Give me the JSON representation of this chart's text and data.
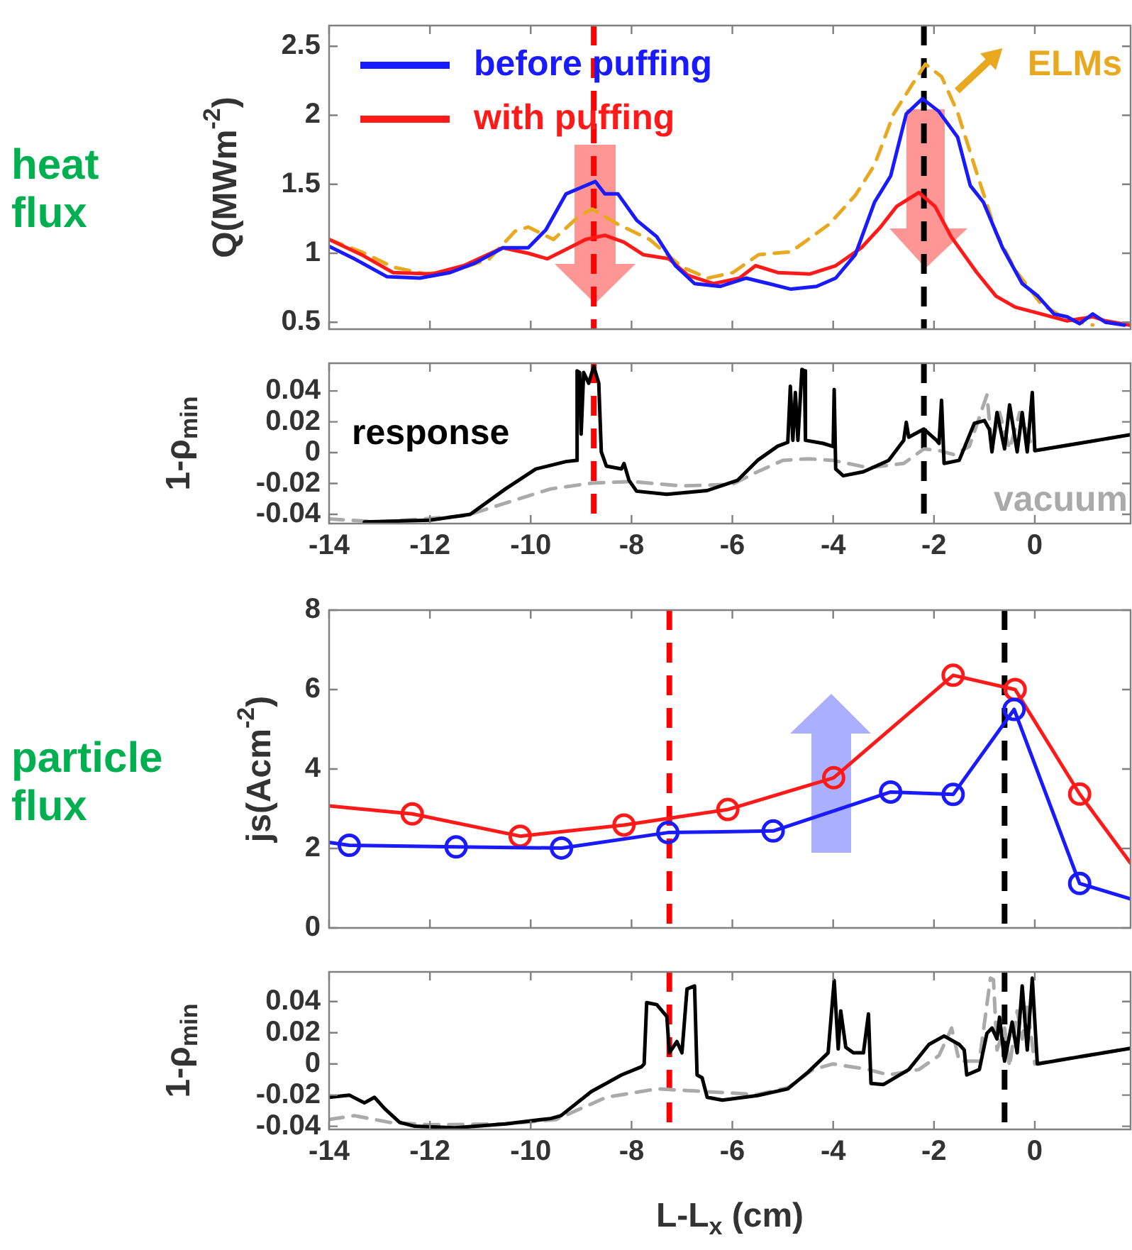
{
  "chart_data": [
    {
      "type": "line",
      "ylabel": "Q(MWm$^{-2}$)",
      "annotations": [
        "heat flux",
        "ELMs"
      ],
      "xlim": [
        -14,
        1.9
      ],
      "xticks": [
        -14,
        -12,
        -10,
        -8,
        -6,
        -4,
        -2,
        0
      ],
      "ylim": [
        0.45,
        2.65
      ],
      "yticks": [
        0.5,
        1,
        1.5,
        2,
        2.5
      ],
      "tick_labels": "y",
      "legend": "top left",
      "line_style": "solid",
      "marker": "none",
      "ref_lines": [
        {
          "axis": "x",
          "value": -8.75,
          "color": "#ff0000",
          "line_style": "dashed"
        },
        {
          "axis": "x",
          "value": -2.2,
          "color": "#000000",
          "line_style": "dashed"
        }
      ],
      "series": [
        {
          "name": "before puffing",
          "color": "#1a1aff",
          "x": [
            -14,
            -13.5,
            -12.85,
            -12.2,
            -11.6,
            -11.1,
            -10.55,
            -10.05,
            -9.7,
            -9.3,
            -9.04,
            -8.72,
            -8.53,
            -8.27,
            -7.9,
            -7.5,
            -7.13,
            -6.75,
            -6.24,
            -5.73,
            -5.28,
            -4.84,
            -4.33,
            -3.95,
            -3.56,
            -3.18,
            -2.86,
            -2.55,
            -2.23,
            -1.91,
            -1.53,
            -1.28,
            -1.02,
            -0.64,
            -0.25,
            0.06,
            0.38,
            0.64,
            0.89,
            1.15,
            1.4,
            1.78
          ],
          "values": [
            1.05,
            0.96,
            0.83,
            0.82,
            0.86,
            0.93,
            1.04,
            1.04,
            1.17,
            1.43,
            1.47,
            1.52,
            1.43,
            1.43,
            1.24,
            1.12,
            0.91,
            0.78,
            0.76,
            0.82,
            0.78,
            0.74,
            0.76,
            0.82,
            0.99,
            1.37,
            1.56,
            2.01,
            2.12,
            2.03,
            1.84,
            1.49,
            1.37,
            1.04,
            0.78,
            0.69,
            0.56,
            0.54,
            0.49,
            0.56,
            0.5,
            0.48
          ]
        },
        {
          "name": "with puffing",
          "color": "#ff1a1a",
          "x": [
            -14,
            -13.36,
            -12.73,
            -11.96,
            -11.33,
            -10.56,
            -10.05,
            -9.67,
            -9.29,
            -8.91,
            -8.53,
            -8.15,
            -7.77,
            -7.26,
            -6.88,
            -6.37,
            -5.86,
            -5.54,
            -5.1,
            -4.46,
            -3.95,
            -3.44,
            -3.06,
            -2.74,
            -2.3,
            -1.98,
            -1.66,
            -1.15,
            -0.77,
            -0.39,
            0.13,
            0.64,
            1.15,
            1.4,
            1.88
          ],
          "values": [
            1.1,
            0.99,
            0.86,
            0.85,
            0.91,
            1.04,
            1.0,
            0.96,
            1.03,
            1.1,
            1.13,
            1.08,
            0.99,
            0.96,
            0.84,
            0.78,
            0.82,
            0.91,
            0.86,
            0.85,
            0.91,
            1.04,
            1.19,
            1.34,
            1.44,
            1.34,
            1.12,
            0.86,
            0.69,
            0.61,
            0.56,
            0.51,
            0.54,
            0.51,
            0.48
          ]
        },
        {
          "color": "#e8a820",
          "line_style": "dashed",
          "x": [
            -14,
            -13.36,
            -12.73,
            -12.09,
            -11.46,
            -10.82,
            -10.31,
            -10.05,
            -9.55,
            -9.04,
            -8.78,
            -8.27,
            -7.64,
            -7.0,
            -6.49,
            -5.99,
            -5.48,
            -4.84,
            -4.08,
            -3.56,
            -3.18,
            -2.8,
            -2.42,
            -2.17,
            -1.85,
            -1.53,
            -1.15,
            -0.77,
            -0.39,
            0.13,
            0.64,
            1.15
          ],
          "values": [
            1.1,
            1.01,
            0.9,
            0.85,
            0.88,
            0.96,
            1.16,
            1.19,
            1.1,
            1.27,
            1.32,
            1.21,
            1.1,
            0.9,
            0.82,
            0.86,
            0.99,
            1.01,
            1.21,
            1.42,
            1.64,
            2.01,
            2.23,
            2.37,
            2.28,
            2.02,
            1.58,
            1.15,
            0.88,
            0.63,
            0.52,
            0.48
          ]
        }
      ]
    },
    {
      "type": "line",
      "ylabel": "1-ρ$_{min}$",
      "xlim": [
        -14,
        1.9
      ],
      "xticks": [
        -14,
        -12,
        -10,
        -8,
        -6,
        -4,
        -2,
        0
      ],
      "ylim": [
        -0.046,
        0.058
      ],
      "yticks": [
        -0.04,
        -0.02,
        0,
        0.02,
        0.04
      ],
      "line_style": "solid",
      "marker": "none",
      "ref_lines": [
        {
          "axis": "x",
          "value": -8.75,
          "color": "#ff0000",
          "line_style": "dashed"
        },
        {
          "axis": "x",
          "value": -2.2,
          "color": "#000000",
          "line_style": "dashed"
        }
      ],
      "series": [
        {
          "name": "response",
          "color": "#000000",
          "x": [
            -13.3,
            -12,
            -11.2,
            -10.5,
            -9.9,
            -9.3,
            -9.1,
            -9.08,
            -9.03,
            -9.0,
            -8.95,
            -8.85,
            -8.75,
            -8.65,
            -8.6,
            -8.5,
            -8.2,
            -8.15,
            -8.05,
            -7.9,
            -7.3,
            -6.5,
            -5.9,
            -5.5,
            -5.1,
            -4.9,
            -4.85,
            -4.8,
            -4.75,
            -4.7,
            -4.62,
            -4.57,
            -4.55,
            -4.2,
            -4.0,
            -3.98,
            -3.95,
            -3.8,
            -3.4,
            -2.9,
            -2.6,
            -2.55,
            -2.5,
            -2.2,
            -1.95,
            -1.9,
            -1.85,
            -1.8,
            -1.5,
            -1.2,
            -1.0,
            -0.9,
            -0.85,
            -0.75,
            -0.6,
            -0.5,
            -0.35,
            -0.25,
            -0.15,
            -0.05,
            0,
            1.9
          ],
          "values": [
            -0.045,
            -0.0438,
            -0.04,
            -0.0235,
            -0.0106,
            -0.0058,
            -0.005,
            0.053,
            0.052,
            0.012,
            0.052,
            0.045,
            0.056,
            0.045,
            0.0005,
            -0.0087,
            -0.0106,
            -0.007,
            -0.018,
            -0.025,
            -0.027,
            -0.0246,
            -0.018,
            -0.005,
            0.0042,
            0.0067,
            0.043,
            0.008,
            0.039,
            0.008,
            0.054,
            0.053,
            0.008,
            0.006,
            0.004,
            0.041,
            -0.0106,
            -0.015,
            -0.0124,
            -0.005,
            0.008,
            0.0197,
            0.01,
            0.0153,
            0.008,
            0.006,
            0.034,
            -0.007,
            -0.005,
            0.019,
            0.0208,
            0.015,
            0.0005,
            0.026,
            0.0024,
            0.031,
            0.0005,
            0.026,
            0.0005,
            0.039,
            0.0013,
            0.0116
          ]
        },
        {
          "name": "vacuum",
          "color": "#aaaaaa",
          "line_style": "dashed",
          "x": [
            -14,
            -13,
            -11.3,
            -10.5,
            -9.6,
            -8.8,
            -8,
            -7,
            -6,
            -5.5,
            -5,
            -4.5,
            -4,
            -3.3,
            -2.6,
            -2.2,
            -1.9,
            -1.6,
            -1.3,
            -1.1,
            -0.95,
            -0.85,
            -0.7,
            -0.5,
            -0.3,
            -0.1,
            0,
            1.9
          ],
          "values": [
            -0.043,
            -0.045,
            -0.041,
            -0.0327,
            -0.0235,
            -0.0198,
            -0.0187,
            -0.0216,
            -0.0205,
            -0.0124,
            -0.005,
            -0.004,
            -0.005,
            -0.0098,
            -0.007,
            0.0024,
            0.0013,
            -0.0013,
            0.004,
            0.023,
            0.0374,
            0.004,
            0.026,
            0.0024,
            0.026,
            0.008,
            0.0013,
            0.0116
          ]
        }
      ]
    },
    {
      "type": "line",
      "ylabel": "js(Acm$^{-2}$)",
      "annotations": [
        "particle flux"
      ],
      "xlim": [
        -14,
        1.9
      ],
      "xticks": [
        -14,
        -12,
        -10,
        -8,
        -6,
        -4,
        -2,
        0
      ],
      "ylim": [
        0,
        8
      ],
      "yticks": [
        0,
        2,
        4,
        6,
        8
      ],
      "tick_labels": "y",
      "line_style": "solid",
      "marker": "circle",
      "ref_lines": [
        {
          "axis": "x",
          "value": -7.25,
          "color": "#ff0000",
          "line_style": "dashed"
        },
        {
          "axis": "x",
          "value": -0.6,
          "color": "#000000",
          "line_style": "dashed"
        }
      ],
      "series": [
        {
          "color": "#1a1aff",
          "x": [
            -14,
            -13.6,
            -11.48,
            -9.39,
            -7.28,
            -5.19,
            -2.86,
            -1.62,
            -0.41,
            0.89,
            1.9
          ],
          "values": [
            2.15,
            2.08,
            2.04,
            2.01,
            2.4,
            2.44,
            3.42,
            3.36,
            5.5,
            1.12,
            0.73
          ]
        },
        {
          "color": "#ff1a1a",
          "x": [
            -14,
            -12.35,
            -10.21,
            -8.15,
            -6.09,
            -3.99,
            -1.62,
            -0.39,
            0.89,
            1.9
          ],
          "values": [
            3.07,
            2.87,
            2.31,
            2.59,
            2.98,
            3.78,
            6.36,
            6.0,
            3.37,
            1.63
          ]
        }
      ]
    },
    {
      "type": "line",
      "xlabel": "L-L$_{x}$ (cm)",
      "ylabel": "1-ρ$_{min}$",
      "xlim": [
        -14,
        1.9
      ],
      "xticks": [
        -14,
        -12,
        -10,
        -8,
        -6,
        -4,
        -2,
        0
      ],
      "ylim": [
        -0.042,
        0.059
      ],
      "yticks": [
        -0.04,
        -0.02,
        0,
        0.02,
        0.04
      ],
      "line_style": "solid",
      "marker": "none",
      "ref_lines": [
        {
          "axis": "x",
          "value": -7.25,
          "color": "#ff0000",
          "line_style": "dashed"
        },
        {
          "axis": "x",
          "value": -0.6,
          "color": "#000000",
          "line_style": "dashed"
        }
      ],
      "series": [
        {
          "color": "#000000",
          "x": [
            -14,
            -13.6,
            -13.3,
            -13.1,
            -12.9,
            -12.6,
            -12.3,
            -11.5,
            -10.5,
            -9.6,
            -9.4,
            -8.8,
            -8.2,
            -7.8,
            -7.75,
            -7.7,
            -7.5,
            -7.3,
            -7.25,
            -7.1,
            -7.0,
            -6.9,
            -6.75,
            -6.7,
            -6.6,
            -6.5,
            -6.2,
            -5.5,
            -4.9,
            -4.5,
            -4.1,
            -3.98,
            -3.9,
            -3.85,
            -3.75,
            -3.6,
            -3.4,
            -3.3,
            -3.25,
            -3.0,
            -2.5,
            -2.1,
            -1.8,
            -1.5,
            -1.4,
            -1.35,
            -1.1,
            -0.95,
            -0.85,
            -0.75,
            -0.7,
            -0.6,
            -0.45,
            -0.35,
            -0.25,
            -0.15,
            -0.05,
            0.05,
            1.9
          ],
          "values": [
            -0.0214,
            -0.02,
            -0.025,
            -0.0214,
            -0.0286,
            -0.0375,
            -0.04,
            -0.041,
            -0.0385,
            -0.035,
            -0.0332,
            -0.0178,
            -0.0071,
            -0.0018,
            0,
            0.0393,
            0.038,
            0.0304,
            0.0071,
            0.0143,
            0.0071,
            0.048,
            0.05,
            -0.0071,
            -0.0089,
            -0.0214,
            -0.0232,
            -0.0203,
            -0.016,
            -0.0053,
            0.0071,
            0.0536,
            0.0096,
            0.034,
            0.0107,
            0.0071,
            0.0071,
            0.032,
            -0.0125,
            -0.0132,
            -0.0036,
            0.0125,
            0.0179,
            0.0125,
            0.0089,
            -0.0071,
            -0.0036,
            0.0196,
            0.023,
            0.016,
            0.03,
            0.0018,
            0.0268,
            0.0071,
            0.05,
            0.0089,
            0.055,
            0,
            0.01
          ]
        },
        {
          "color": "#aaaaaa",
          "line_style": "dashed",
          "x": [
            -14,
            -13.5,
            -12.8,
            -12,
            -10.5,
            -9.5,
            -8.5,
            -7.5,
            -6.5,
            -5.5,
            -4.9,
            -4.4,
            -4,
            -3.3,
            -2.9,
            -2.3,
            -1.9,
            -1.65,
            -1.5,
            -1.1,
            -0.88,
            -0.82,
            -0.75,
            -0.6,
            -0.5,
            -0.35,
            -0.25,
            -0.15,
            0,
            1.9
          ],
          "values": [
            -0.0357,
            -0.0332,
            -0.0375,
            -0.039,
            -0.0385,
            -0.0357,
            -0.0214,
            -0.016,
            -0.0178,
            -0.0196,
            -0.0153,
            -0.0036,
            0,
            -0.0036,
            -0.0071,
            -0.0036,
            0.0054,
            0.023,
            0.0018,
            0.0018,
            0.055,
            0.054,
            0.0089,
            0.023,
            -0.0018,
            0.034,
            0.016,
            0.0375,
            0,
            0.01
          ]
        }
      ]
    }
  ]
}
